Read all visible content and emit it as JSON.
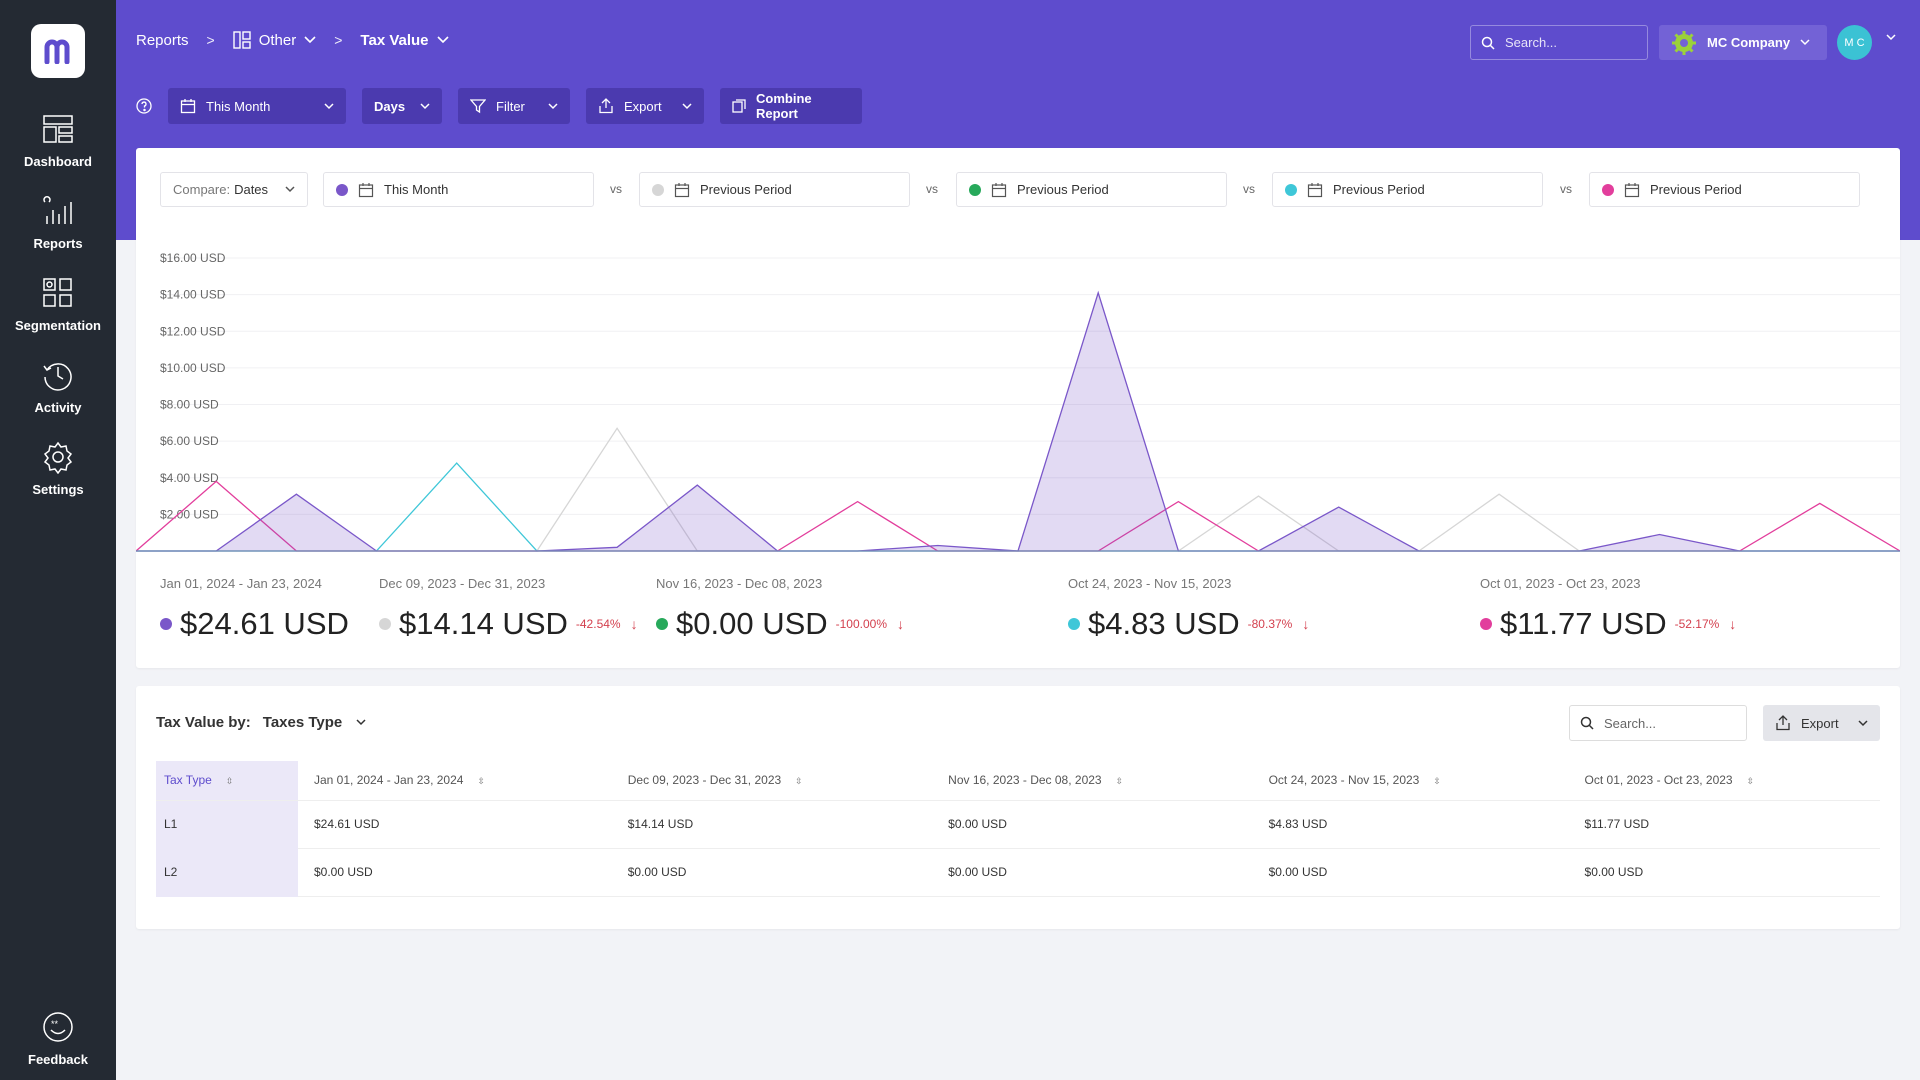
{
  "sidebar": {
    "items": [
      {
        "label": "Dashboard",
        "icon": "dashboard-icon"
      },
      {
        "label": "Reports",
        "icon": "bar-chart-icon"
      },
      {
        "label": "Segmentation",
        "icon": "segmentation-icon"
      },
      {
        "label": "Activity",
        "icon": "history-icon"
      },
      {
        "label": "Settings",
        "icon": "gear-icon"
      }
    ],
    "feedback": "Feedback"
  },
  "breadcrumb": {
    "reports": "Reports",
    "other": "Other",
    "current": "Tax Value"
  },
  "header": {
    "search_placeholder": "Search...",
    "company": "MC Company",
    "avatar_initials": "M C"
  },
  "toolbar": {
    "period": "This Month",
    "granularity": "Days",
    "filter": "Filter",
    "export": "Export",
    "combine": "Combine Report"
  },
  "compare": {
    "prefix": "Compare:",
    "mode": "Dates",
    "vs": "vs",
    "periods": [
      {
        "label": "This Month",
        "color": "#7a57c9"
      },
      {
        "label": "Previous Period",
        "color": "#d6d6d6"
      },
      {
        "label": "Previous Period",
        "color": "#27a95b"
      },
      {
        "label": "Previous Period",
        "color": "#3fc7d8"
      },
      {
        "label": "Previous Period",
        "color": "#e23e9c"
      }
    ]
  },
  "chart_data": {
    "type": "area",
    "ylim": [
      0,
      16
    ],
    "y_ticks": [
      "$16.00  USD",
      "$14.00  USD",
      "$12.00  USD",
      "$10.00  USD",
      "$8.00  USD",
      "$6.00  USD",
      "$4.00  USD",
      "$2.00  USD"
    ],
    "y_tick_values": [
      16,
      14,
      12,
      10,
      8,
      6,
      4,
      2
    ],
    "x_count": 23,
    "series": [
      {
        "color": "#d6d6d6",
        "filled": false,
        "values": [
          0,
          0,
          0,
          0,
          0,
          0,
          6.7,
          0,
          0,
          0,
          0,
          0,
          0,
          0,
          0,
          0,
          0,
          0,
          0,
          0,
          0,
          0,
          0
        ]
      },
      {
        "color": "#d6d6d6",
        "filled": false,
        "values": [
          0,
          0,
          0,
          0,
          0,
          0,
          0,
          0,
          0,
          0,
          0,
          0,
          0,
          0,
          3.0,
          0,
          0,
          3.1,
          0,
          0,
          0,
          0,
          0
        ]
      },
      {
        "color": "#3fc7d8",
        "filled": false,
        "values": [
          0,
          0,
          0,
          0,
          4.8,
          0,
          0,
          0,
          0,
          0,
          0,
          0,
          0,
          0,
          0,
          0,
          0,
          0,
          0,
          0,
          0,
          0,
          0
        ]
      },
      {
        "color": "#e23e9c",
        "filled": false,
        "values": [
          0,
          3.8,
          0,
          0,
          0,
          0,
          0,
          0,
          0,
          2.7,
          0,
          0,
          0,
          2.7,
          0,
          0,
          0,
          0,
          0,
          0,
          0,
          2.6,
          0
        ]
      },
      {
        "color": "#7a57c9",
        "filled": true,
        "values": [
          0,
          0,
          3.1,
          0,
          0,
          0,
          0.2,
          3.6,
          0,
          0,
          0.3,
          0,
          14.1,
          0,
          0,
          2.4,
          0,
          0,
          0,
          0.9,
          0,
          0,
          0
        ]
      }
    ]
  },
  "summary": [
    {
      "range": "Jan 01, 2024 - Jan 23, 2024",
      "value": "$24.61 USD",
      "change": "",
      "color": "#7a57c9"
    },
    {
      "range": "Dec 09, 2023 - Dec 31, 2023",
      "value": "$14.14 USD",
      "change": "-42.54%",
      "color": "#d6d6d6"
    },
    {
      "range": "Nov 16, 2023 - Dec 08, 2023",
      "value": "$0.00 USD",
      "change": "-100.00%",
      "color": "#27a95b"
    },
    {
      "range": "Oct 24, 2023 - Nov 15, 2023",
      "value": "$4.83 USD",
      "change": "-80.37%",
      "color": "#3fc7d8"
    },
    {
      "range": "Oct 01, 2023 - Oct 23, 2023",
      "value": "$11.77 USD",
      "change": "-52.17%",
      "color": "#e23e9c"
    }
  ],
  "table": {
    "title": "Tax Value by:",
    "group_by": "Taxes Type",
    "search_placeholder": "Search...",
    "export": "Export",
    "columns": [
      "Tax Type",
      "Jan 01, 2024 - Jan 23, 2024",
      "Dec 09, 2023 - Dec 31, 2023",
      "Nov 16, 2023 - Dec 08, 2023",
      "Oct 24, 2023 - Nov 15, 2023",
      "Oct 01, 2023 - Oct 23, 2023"
    ],
    "rows": [
      [
        "L1",
        "$24.61 USD",
        "$14.14 USD",
        "$0.00 USD",
        "$4.83 USD",
        "$11.77 USD"
      ],
      [
        "L2",
        "$0.00 USD",
        "$0.00 USD",
        "$0.00 USD",
        "$0.00 USD",
        "$0.00 USD"
      ]
    ]
  }
}
